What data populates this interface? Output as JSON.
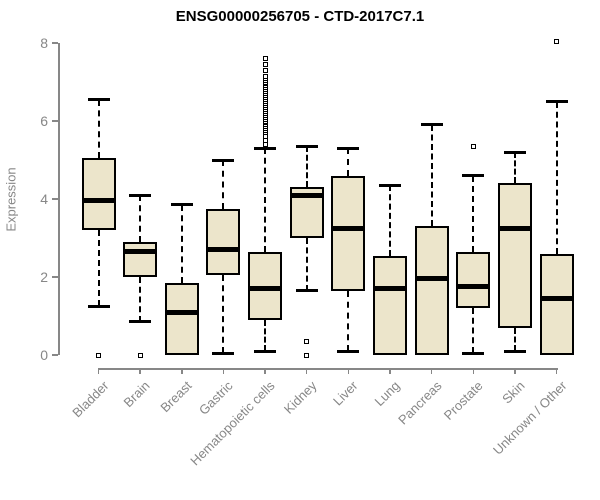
{
  "title": "ENSG00000256705 - CTD-2017C7.1",
  "chart_data": {
    "type": "boxplot",
    "title": "ENSG00000256705 - CTD-2017C7.1",
    "xlabel": "",
    "ylabel": "Expression",
    "ylim": [
      0,
      8.2
    ],
    "yticks": [
      0,
      2,
      4,
      6,
      8
    ],
    "grid": false,
    "box_fill_color": "#ECE5CB",
    "box_border_color": "#000000",
    "axis_color": "#878787",
    "label_color": "#878787",
    "categories": [
      "Bladder",
      "Brain",
      "Breast",
      "Gastric",
      "Hematopoietic cells",
      "Kidney",
      "Liver",
      "Lung",
      "Pancreas",
      "Prostate",
      "Skin",
      "Unknown / Other"
    ],
    "series": [
      {
        "category": "Bladder",
        "whisker_low": 1.25,
        "q1": 3.2,
        "median": 3.95,
        "q3": 5.05,
        "whisker_high": 6.55,
        "outliers": [
          0
        ]
      },
      {
        "category": "Brain",
        "whisker_low": 0.85,
        "q1": 2.0,
        "median": 2.65,
        "q3": 2.9,
        "whisker_high": 4.1,
        "outliers": [
          0
        ]
      },
      {
        "category": "Breast",
        "whisker_low": 0,
        "q1": 0,
        "median": 1.1,
        "q3": 1.85,
        "whisker_high": 3.85,
        "outliers": []
      },
      {
        "category": "Gastric",
        "whisker_low": 0.05,
        "q1": 2.05,
        "median": 2.7,
        "q3": 3.75,
        "whisker_high": 5.0,
        "outliers": []
      },
      {
        "category": "Hematopoietic cells",
        "whisker_low": 0.1,
        "q1": 0.9,
        "median": 1.7,
        "q3": 2.65,
        "whisker_high": 5.3,
        "outliers": [
          5.4,
          5.5,
          5.6,
          5.7,
          5.75,
          5.8,
          5.85,
          5.9,
          5.95,
          6.0,
          6.05,
          6.1,
          6.15,
          6.2,
          6.25,
          6.3,
          6.35,
          6.4,
          6.45,
          6.5,
          6.55,
          6.6,
          6.65,
          6.7,
          6.75,
          6.8,
          6.85,
          6.9,
          6.95,
          7.0,
          7.05,
          7.1,
          7.15,
          7.3,
          7.45,
          7.6
        ]
      },
      {
        "category": "Kidney",
        "whisker_low": 1.65,
        "q1": 3.0,
        "median": 4.1,
        "q3": 4.3,
        "whisker_high": 5.35,
        "outliers": [
          0.35,
          0
        ]
      },
      {
        "category": "Liver",
        "whisker_low": 0.1,
        "q1": 1.65,
        "median": 3.25,
        "q3": 4.6,
        "whisker_high": 5.3,
        "outliers": []
      },
      {
        "category": "Lung",
        "whisker_low": 0,
        "q1": 0,
        "median": 1.7,
        "q3": 2.55,
        "whisker_high": 4.35,
        "outliers": []
      },
      {
        "category": "Pancreas",
        "whisker_low": 0,
        "q1": 0,
        "median": 1.95,
        "q3": 3.3,
        "whisker_high": 5.9,
        "outliers": []
      },
      {
        "category": "Prostate",
        "whisker_low": 0.05,
        "q1": 1.2,
        "median": 1.75,
        "q3": 2.65,
        "whisker_high": 4.6,
        "outliers": [
          5.35
        ]
      },
      {
        "category": "Skin",
        "whisker_low": 0.1,
        "q1": 0.7,
        "median": 3.25,
        "q3": 4.4,
        "whisker_high": 5.2,
        "outliers": []
      },
      {
        "category": "Unknown / Other",
        "whisker_low": 0,
        "q1": 0,
        "median": 1.45,
        "q3": 2.6,
        "whisker_high": 6.5,
        "outliers": [
          8.05
        ]
      }
    ]
  }
}
